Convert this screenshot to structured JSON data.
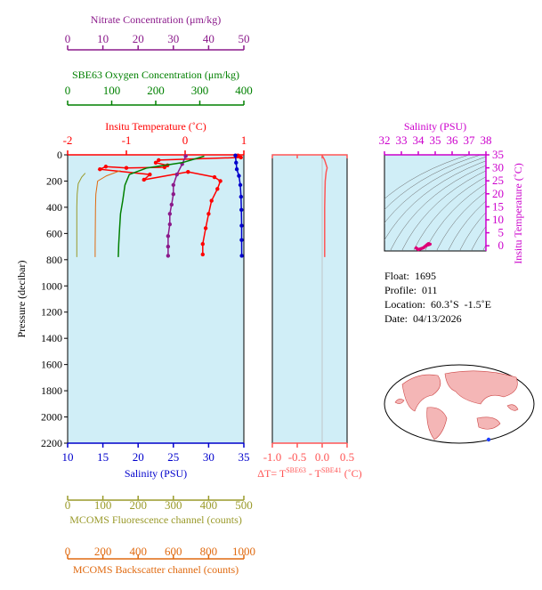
{
  "colors": {
    "nitrate": "#8b1a8b",
    "oxygen": "#008000",
    "temperature": "#ff0000",
    "salinity": "#0000cc",
    "fluorescence": "#9a9a2a",
    "backscatter": "#e06a10",
    "delta_t": "#ff5555",
    "plot_bg": "#d0eef7",
    "inset_axis": "#cc00cc",
    "land": "#f4b6b6"
  },
  "chart_data": [
    {
      "id": "profile",
      "type": "line",
      "ylabel": "Pressure (decibar)",
      "ylim": [
        2200,
        0
      ],
      "yticks": [
        0,
        200,
        400,
        600,
        800,
        1000,
        1200,
        1400,
        1600,
        1800,
        2000,
        2200
      ],
      "axes": {
        "nitrate": {
          "label": "Nitrate Concentration (μm/kg)",
          "range": [
            0,
            50
          ],
          "ticks": [
            0,
            10,
            20,
            30,
            40,
            50
          ]
        },
        "oxygen": {
          "label": "SBE63 Oxygen Concentration (μm/kg)",
          "range": [
            0,
            400
          ],
          "ticks": [
            0,
            100,
            200,
            300,
            400
          ]
        },
        "temperature": {
          "label": "Insitu Temperature (˚C)",
          "range": [
            -2,
            1
          ],
          "ticks": [
            -2,
            -1,
            0,
            1
          ]
        },
        "salinity": {
          "label": "Salinity (PSU)",
          "range": [
            10,
            35
          ],
          "ticks": [
            10,
            15,
            20,
            25,
            30,
            35
          ]
        },
        "fluorescence": {
          "label": "MCOMS Fluorescence channel (counts)",
          "range": [
            0,
            500
          ],
          "ticks": [
            0,
            100,
            200,
            300,
            400,
            500
          ]
        },
        "backscatter": {
          "label": "MCOMS Backscatter channel (counts)",
          "range": [
            0,
            1000
          ],
          "ticks": [
            0,
            200,
            400,
            600,
            800,
            1000
          ]
        }
      },
      "series": [
        {
          "key": "temperature",
          "x": [
            0.9,
            0.95,
            -0.45,
            -0.5,
            -0.3,
            -0.35,
            -1.0,
            -1.35,
            -1.45,
            -0.6,
            -0.7,
            0.05,
            0.5,
            0.6,
            0.55,
            0.45,
            0.4,
            0.35,
            0.3,
            0.3
          ],
          "y": [
            5,
            20,
            40,
            60,
            80,
            95,
            100,
            90,
            110,
            150,
            190,
            130,
            170,
            200,
            260,
            350,
            450,
            560,
            680,
            760
          ]
        },
        {
          "key": "nitrate",
          "x": [
            33.5,
            32.5,
            31,
            30,
            30,
            29.5,
            29,
            29,
            28.5,
            28.5,
            28.5
          ],
          "y": [
            10,
            70,
            150,
            230,
            300,
            380,
            450,
            530,
            620,
            700,
            770
          ]
        },
        {
          "key": "salinity",
          "x": [
            33.8,
            33.9,
            34.0,
            34.3,
            34.5,
            34.6,
            34.65,
            34.68,
            34.68,
            34.7
          ],
          "y": [
            5,
            60,
            110,
            160,
            230,
            320,
            420,
            540,
            650,
            770
          ]
        },
        {
          "key": "oxygen",
          "x": [
            310,
            260,
            180,
            140,
            130,
            125,
            120,
            118,
            116,
            115
          ],
          "y": [
            10,
            60,
            100,
            150,
            230,
            350,
            450,
            560,
            680,
            780
          ]
        },
        {
          "key": "fluorescence",
          "x": [
            50,
            40,
            30,
            27,
            26,
            26,
            26,
            26
          ],
          "y": [
            140,
            170,
            220,
            300,
            400,
            550,
            700,
            780
          ]
        },
        {
          "key": "backscatter",
          "x": [
            300,
            220,
            170,
            160,
            158,
            157,
            156,
            156
          ],
          "y": [
            120,
            160,
            200,
            300,
            400,
            550,
            700,
            780
          ]
        }
      ]
    },
    {
      "id": "delta_t",
      "type": "line",
      "xlabel": "ΔT= T",
      "xlabel_sup1": "SBE63",
      "xlabel_mid": " - T",
      "xlabel_sup2": "SBE41",
      "xlabel_end": " (˚C)",
      "xlim": [
        -1.0,
        0.5
      ],
      "xticks": [
        -1.0,
        -0.5,
        0.0,
        0.5
      ],
      "ylim": [
        2200,
        0
      ],
      "series": [
        {
          "name": "",
          "x": [
            0.0,
            0.05,
            0.1,
            0.08,
            0.06,
            0.05,
            0.05,
            0.05
          ],
          "y": [
            5,
            40,
            100,
            130,
            200,
            400,
            600,
            780
          ]
        }
      ]
    },
    {
      "id": "ts_inset",
      "type": "scatter",
      "xlabel": "Salinity (PSU)",
      "ylabel": "Insitu Temperature (˚C)",
      "xlim": [
        32,
        38
      ],
      "ylim": [
        -2,
        35
      ],
      "xticks": [
        32,
        33,
        34,
        35,
        36,
        37,
        38
      ],
      "yticks": [
        0,
        5,
        10,
        15,
        20,
        25,
        30,
        35
      ],
      "series": [
        {
          "name": "",
          "x": [
            33.8,
            34.0,
            34.3,
            34.5,
            34.6,
            34.7,
            34.5
          ],
          "y": [
            -0.5,
            -1.5,
            -0.8,
            0.3,
            0.8,
            0.6,
            0.2
          ]
        }
      ]
    }
  ],
  "info": {
    "float": "Float:  1695",
    "profile": "Profile:  011",
    "location": "Location:  60.3˚S  -1.5˚E",
    "date": "Date:  04/13/2026"
  }
}
